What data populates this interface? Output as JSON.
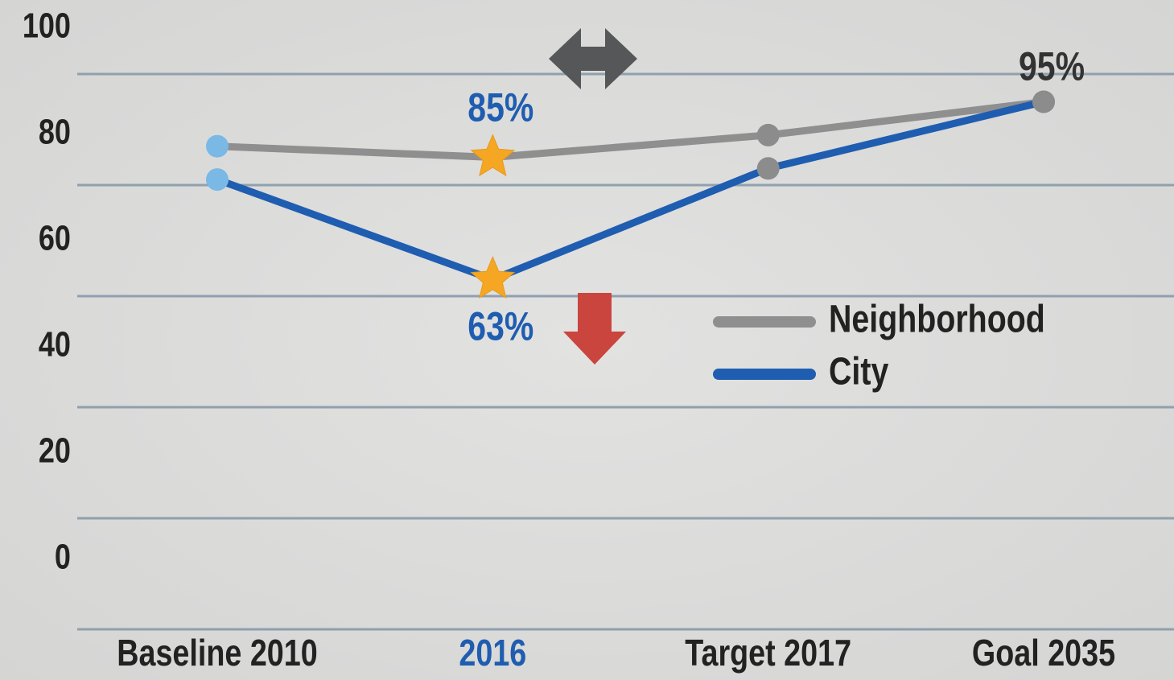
{
  "chart_data": {
    "type": "line",
    "categories": [
      "Baseline 2010",
      "2016",
      "Target 2017",
      "Goal 2035"
    ],
    "series": [
      {
        "name": "Neighborhood",
        "color": "#8f8f8f",
        "values": [
          87,
          85,
          89,
          95
        ],
        "value_labels": [
          null,
          "85%",
          null,
          "95%"
        ],
        "label_colors": [
          null,
          "#1f5db0",
          null,
          "#333333"
        ],
        "marker_colors": [
          "#7ab8e6",
          "#f5a623",
          "#8c8c8c",
          "#8c8c8c"
        ],
        "marker_shapes": [
          "circle",
          "star",
          "circle",
          "circle"
        ]
      },
      {
        "name": "City",
        "color": "#1f5db0",
        "values": [
          81,
          63,
          83,
          95
        ],
        "value_labels": [
          null,
          "63%",
          null,
          null
        ],
        "label_colors": [
          null,
          "#1f5db0",
          null,
          null
        ],
        "marker_colors": [
          "#7ab8e6",
          "#f5a623",
          "#8c8c8c",
          "#8c8c8c"
        ],
        "marker_shapes": [
          "circle",
          "star",
          "circle",
          "circle"
        ]
      }
    ],
    "ylim": [
      0,
      100
    ],
    "yticks": [
      0,
      20,
      40,
      60,
      80,
      100
    ],
    "grid": true,
    "grid_color": "#8fa0ae",
    "legend": "right",
    "highlight_category_color": "#1f5db0"
  }
}
